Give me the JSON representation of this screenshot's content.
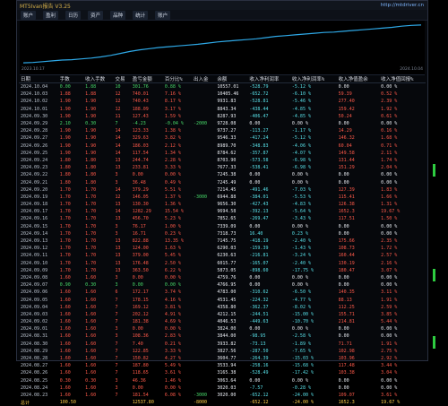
{
  "window": {
    "title": "MT5Ivan报告 V3.25",
    "site": "http://mtdriver.cn"
  },
  "toolbar": [
    "账户",
    "盈利",
    "日历",
    "资产",
    "品种",
    "统计",
    "账户"
  ],
  "chart_data": {
    "type": "line",
    "title": "",
    "ylim": [
      0,
      1
    ],
    "note": "equity curve, normalized",
    "values": [
      0.02,
      0.03,
      0.05,
      0.07,
      0.09,
      0.1,
      0.12,
      0.14,
      0.17,
      0.21,
      0.26,
      0.31,
      0.35,
      0.38,
      0.41,
      0.43,
      0.45,
      0.47,
      0.49,
      0.52,
      0.55,
      0.57,
      0.59,
      0.61,
      0.63,
      0.66,
      0.69,
      0.71,
      0.73,
      0.75,
      0.77,
      0.79,
      0.8,
      0.82,
      0.84,
      0.86,
      0.88,
      0.9,
      0.92,
      0.95,
      0.97,
      0.98
    ],
    "x_left_label": "2023.10.17",
    "x_right_label": "2024.10.04"
  },
  "table": {
    "headers": [
      "日期",
      "手数",
      "收入手数",
      "交易",
      "盈亏金额",
      "百分比%",
      "出入金",
      "余额",
      "收入净利润率",
      "收入净利润率%",
      "收入净值盈余",
      "收入净值回报%"
    ],
    "rows": [
      [
        "2024.10.04",
        "0.00",
        "1.88",
        "10",
        "301.76",
        "0.88 %",
        "",
        "10557.01",
        "-528.79",
        "-5.12 %",
        "0.00",
        "0.00 %"
      ],
      [
        "2024.10.03",
        "1.88",
        "1.88",
        "12",
        "740.01",
        "7.16 %",
        "",
        "10405.46",
        "-652.72",
        "-6.10 %",
        "59.39",
        "0.52 %"
      ],
      [
        "2024.10.02",
        "1.90",
        "1.90",
        "12",
        "740.43",
        "8.17 %",
        "",
        "9931.83",
        "-528.81",
        "-5.46 %",
        "277.40",
        "2.39 %"
      ],
      [
        "2024.10.01",
        "1.90",
        "1.90",
        "12",
        "188.09",
        "3.17 %",
        "",
        "8843.34",
        "-438.44",
        "-4.85 %",
        "159.42",
        "1.92 %"
      ],
      [
        "2024.09.30",
        "1.90",
        "1.90",
        "11",
        "127.43",
        "1.59 %",
        "",
        "8287.93",
        "-406.47",
        "-4.85 %",
        "50.24",
        "0.61 %"
      ],
      [
        "2024.09.29",
        "2.10",
        "0.30",
        "7",
        "-4.23",
        "-0.04 %",
        "-2000",
        "9728.08",
        "0.00",
        "0.00 %",
        "0.00",
        "0.00 %"
      ],
      [
        "2024.09.28",
        "1.90",
        "1.90",
        "14",
        "123.33",
        "1.38 %",
        "",
        "9737.27",
        "-113.27",
        "-1.17 %",
        "14.29",
        "0.16 %"
      ],
      [
        "2024.09.27",
        "1.90",
        "1.90",
        "14",
        "329.63",
        "3.82 %",
        "",
        "9546.33",
        "-417.24",
        "-5.12 %",
        "146.32",
        "1.68 %"
      ],
      [
        "2024.09.26",
        "1.90",
        "1.90",
        "14",
        "186.03",
        "2.12 %",
        "",
        "8989.70",
        "-348.83",
        "-4.06 %",
        "60.04",
        "0.71 %"
      ],
      [
        "2024.09.25",
        "1.90",
        "1.90",
        "14",
        "117.54",
        "1.34 %",
        "",
        "8784.62",
        "-357.87",
        "-4.07 %",
        "149.58",
        "2.11 %"
      ],
      [
        "2024.09.24",
        "1.80",
        "1.80",
        "13",
        "244.74",
        "2.28 %",
        "",
        "8703.90",
        "-573.58",
        "-6.98 %",
        "131.44",
        "1.74 %"
      ],
      [
        "2024.09.23",
        "1.80",
        "1.80",
        "13",
        "233.81",
        "3.33 %",
        "",
        "7677.33",
        "-538.41",
        "-6.98 %",
        "151.29",
        "2.04 %"
      ],
      [
        "2024.09.22",
        "1.80",
        "1.80",
        "3",
        "0.00",
        "0.00 %",
        "",
        "7245.38",
        "0.00",
        "0.00 %",
        "0.00",
        "0.00 %"
      ],
      [
        "2024.09.21",
        "1.80",
        "1.80",
        "3",
        "36.48",
        "0.49 %",
        "",
        "7245.49",
        "0.00",
        "0.00 %",
        "0.00",
        "0.00 %"
      ],
      [
        "2024.09.20",
        "1.70",
        "1.70",
        "14",
        "379.29",
        "5.51 %",
        "",
        "7214.45",
        "-491.46",
        "-7.03 %",
        "127.39",
        "1.83 %"
      ],
      [
        "2024.09.19",
        "1.70",
        "1.70",
        "12",
        "146.05",
        "1.37 %",
        "-3000",
        "6944.88",
        "-384.01",
        "-5.53 %",
        "115.41",
        "1.66 %"
      ],
      [
        "2024.09.18",
        "1.70",
        "1.70",
        "13",
        "130.30",
        "1.36 %",
        "",
        "9656.30",
        "-427.43",
        "-4.83 %",
        "126.38",
        "1.31 %"
      ],
      [
        "2024.09.17",
        "1.70",
        "1.70",
        "14",
        "1282.29",
        "15.54 %",
        "",
        "9694.58",
        "-392.13",
        "-5.64 %",
        "1652.3",
        "19.67 %"
      ],
      [
        "2024.09.16",
        "1.70",
        "1.70",
        "13",
        "456.70",
        "5.23 %",
        "",
        "7852.65",
        "-269.47",
        "-3.43 %",
        "117.51",
        "1.50 %"
      ],
      [
        "2024.09.15",
        "1.70",
        "1.70",
        "3",
        "76.17",
        "1.00 %",
        "",
        "7339.09",
        "0.00",
        "0.00 %",
        "0.00",
        "0.00 %"
      ],
      [
        "2024.09.14",
        "1.70",
        "1.70",
        "3",
        "16.71",
        "0.23 %",
        "",
        "7318.73",
        "16.40",
        "0.23 %",
        "0.00",
        "0.00 %"
      ],
      [
        "2024.09.13",
        "1.70",
        "1.70",
        "13",
        "822.88",
        "13.35 %",
        "",
        "7145.75",
        "-418.19",
        "-2.40 %",
        "175.66",
        "2.35 %"
      ],
      [
        "2024.09.12",
        "1.70",
        "1.70",
        "13",
        "124.00",
        "1.63 %",
        "",
        "6290.03",
        "-159.39",
        "-1.43 %",
        "108.73",
        "1.72 %"
      ],
      [
        "2024.09.11",
        "1.70",
        "1.70",
        "13",
        "379.00",
        "5.45 %",
        "",
        "6230.63",
        "-216.81",
        "-3.24 %",
        "160.44",
        "2.57 %"
      ],
      [
        "2024.09.10",
        "1.70",
        "1.70",
        "13",
        "176.48",
        "2.50 %",
        "",
        "6015.77",
        "-165.07",
        "-2.40 %",
        "130.19",
        "2.16 %"
      ],
      [
        "2024.09.09",
        "1.70",
        "1.70",
        "13",
        "363.50",
        "6.22 %",
        "",
        "5873.05",
        "-898.60",
        "-17.75 %",
        "180.47",
        "3.07 %"
      ],
      [
        "2024.09.08",
        "1.60",
        "1.60",
        "3",
        "0.00",
        "0.00 %",
        "",
        "4759.76",
        "0.00",
        "0.00 %",
        "0.00",
        "0.00 %"
      ],
      [
        "2024.09.07",
        "0.90",
        "0.30",
        "3",
        "0.00",
        "0.00 %",
        "",
        "4766.95",
        "0.00",
        "0.00 %",
        "0.00",
        "0.00 %"
      ],
      [
        "2024.09.06",
        "1.60",
        "1.60",
        "6",
        "172.17",
        "3.74 %",
        "",
        "4783.00",
        "-310.62",
        "-6.50 %",
        "140.35",
        "3.11 %"
      ],
      [
        "2024.09.05",
        "1.60",
        "1.60",
        "7",
        "178.15",
        "4.16 %",
        "",
        "4531.45",
        "-224.32",
        "-4.77 %",
        "88.13",
        "1.91 %"
      ],
      [
        "2024.09.04",
        "1.60",
        "1.60",
        "7",
        "169.12",
        "3.81 %",
        "",
        "4358.80",
        "-362.37",
        "-8.02 %",
        "112.25",
        "2.59 %"
      ],
      [
        "2024.09.03",
        "1.60",
        "1.60",
        "7",
        "202.12",
        "4.91 %",
        "",
        "4212.15",
        "-244.51",
        "-15.00 %",
        "155.71",
        "3.85 %"
      ],
      [
        "2024.09.02",
        "1.60",
        "1.60",
        "7",
        "181.38",
        "4.69 %",
        "",
        "4046.53",
        "-449.63",
        "-10.70 %",
        "214.81",
        "5.44 %"
      ],
      [
        "2024.09.01",
        "1.60",
        "1.60",
        "3",
        "0.00",
        "0.00 %",
        "",
        "3824.00",
        "0.00",
        "0.00 %",
        "0.00",
        "0.00 %"
      ],
      [
        "2024.08.31",
        "1.60",
        "1.60",
        "3",
        "108.36",
        "2.83 %",
        "",
        "3844.00",
        "-98.95",
        "-2.58 %",
        "0.00",
        "0.00 %"
      ],
      [
        "2024.08.30",
        "1.60",
        "1.60",
        "7",
        "7.40",
        "0.21 %",
        "",
        "3933.82",
        "-73.13",
        "-1.89 %",
        "71.71",
        "1.91 %"
      ],
      [
        "2024.08.29",
        "1.60",
        "1.60",
        "7",
        "122.85",
        "3.33 %",
        "",
        "3827.56",
        "-287.50",
        "-7.65 %",
        "102.98",
        "2.75 %"
      ],
      [
        "2024.08.28",
        "1.60",
        "1.60",
        "7",
        "150.82",
        "4.27 %",
        "",
        "3604.77",
        "-264.39",
        "-15.03 %",
        "103.96",
        "2.92 %"
      ],
      [
        "2024.08.27",
        "1.60",
        "1.60",
        "7",
        "187.80",
        "5.49 %",
        "",
        "3533.94",
        "-258.16",
        "-15.68 %",
        "117.48",
        "3.44 %"
      ],
      [
        "2024.08.26",
        "1.60",
        "1.60",
        "7",
        "118.65",
        "3.61 %",
        "",
        "3165.38",
        "-528.49",
        "-17.42 %",
        "103.38",
        "3.04 %"
      ],
      [
        "2024.08.25",
        "0.30",
        "0.30",
        "3",
        "46.36",
        "1.46 %",
        "",
        "3063.64",
        "0.00",
        "0.00 %",
        "0.00",
        "0.00 %"
      ],
      [
        "2024.08.24",
        "1.60",
        "1.60",
        "3",
        "0.00",
        "0.00 %",
        "",
        "3020.03",
        "-7.57",
        "-0.28 %",
        "0.00",
        "0.00 %"
      ],
      [
        "2024.08.23",
        "1.60",
        "1.60",
        "7",
        "181.54",
        "6.08 %",
        "-3000",
        "3020.00",
        "-652.12",
        "-24.00 %",
        "109.07",
        "3.61 %"
      ]
    ],
    "footer": [
      "总计",
      "100.50",
      "",
      "",
      "12537.80",
      "",
      "-8000",
      "",
      "-652.12",
      "-24.00 %",
      "1652.3",
      "19.67 %"
    ]
  }
}
